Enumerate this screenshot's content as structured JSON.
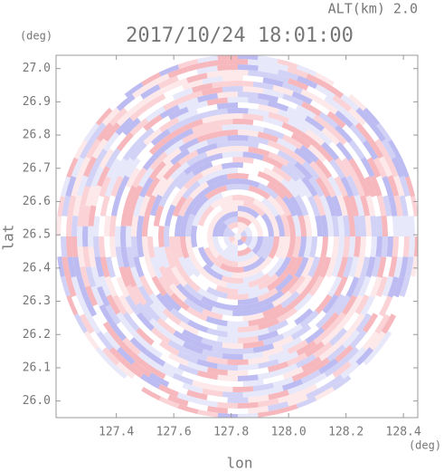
{
  "chart_data": {
    "type": "ppi",
    "title": "2017/10/24 18:01:00",
    "subtitle": "ALT(km) 2.0",
    "x_label": "lon",
    "y_label": "lat",
    "x_unit": "(deg)",
    "y_unit": "(deg)",
    "xlim": [
      127.19,
      128.45
    ],
    "ylim": [
      25.95,
      27.04
    ],
    "xticks": [
      {
        "value": 127.4,
        "label": "127.4"
      },
      {
        "value": 127.6,
        "label": "127.6"
      },
      {
        "value": 127.8,
        "label": "127.8"
      },
      {
        "value": 128.0,
        "label": "128.0"
      },
      {
        "value": 128.2,
        "label": "128.2"
      },
      {
        "value": 128.4,
        "label": "128.4"
      }
    ],
    "yticks": [
      {
        "value": 26.0,
        "label": "26.0"
      },
      {
        "value": 26.1,
        "label": "26.1"
      },
      {
        "value": 26.2,
        "label": "26.2"
      },
      {
        "value": 26.3,
        "label": "26.3"
      },
      {
        "value": 26.4,
        "label": "26.4"
      },
      {
        "value": 26.5,
        "label": "26.5"
      },
      {
        "value": 26.6,
        "label": "26.6"
      },
      {
        "value": 26.7,
        "label": "26.7"
      },
      {
        "value": 26.8,
        "label": "26.8"
      },
      {
        "value": 26.9,
        "label": "26.9"
      },
      {
        "value": 27.0,
        "label": "27.0"
      }
    ]
  }
}
